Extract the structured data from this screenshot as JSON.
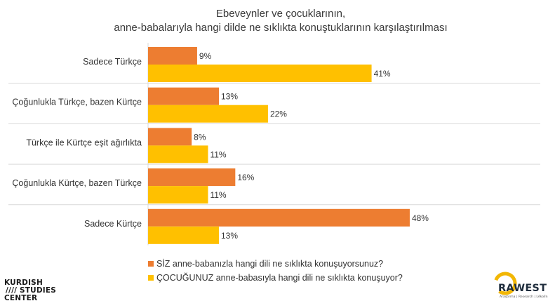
{
  "chart_data": {
    "type": "bar",
    "orientation": "horizontal",
    "title": "Ebeveynler ve çocuklarının,\nanne-babalarıyla hangi dilde ne sıklıkta konuştuklarının karşılaştırılması",
    "categories": [
      "Sadece Türkçe",
      "Çoğunlukla Türkçe, bazen Kürtçe",
      "Türkçe ile Kürtçe eşit ağırlıkta",
      "Çoğunlukla Kürtçe, bazen Türkçe",
      "Sadece Kürtçe"
    ],
    "series": [
      {
        "name": "SİZ anne-babanızla hangi dili ne sıklıkta konuşuyorsunuz?",
        "values": [
          9,
          13,
          8,
          16,
          48
        ],
        "labels": [
          "9%",
          "13%",
          "8%",
          "16%",
          "48%"
        ],
        "color": "#ED7D31"
      },
      {
        "name": "ÇOCUĞUNUZ anne-babasıyla hangi dili ne sıklıkta konuşuyor?",
        "values": [
          41,
          22,
          11,
          11,
          13
        ],
        "labels": [
          "41%",
          "22%",
          "11%",
          "11%",
          "13%"
        ],
        "color": "#FFC000"
      }
    ],
    "xlim": [
      0,
      50
    ],
    "grid": false,
    "legend_position": "bottom",
    "separator_color": "#d9d9d9"
  },
  "logos": {
    "left": {
      "lines": [
        "KURDISH",
        "//// STUDIES",
        "CENTER"
      ]
    },
    "right": {
      "name": "RAWEST",
      "tagline": "Araştırma | Research | Lêkolîn",
      "ring_color": "#F2B705"
    }
  }
}
